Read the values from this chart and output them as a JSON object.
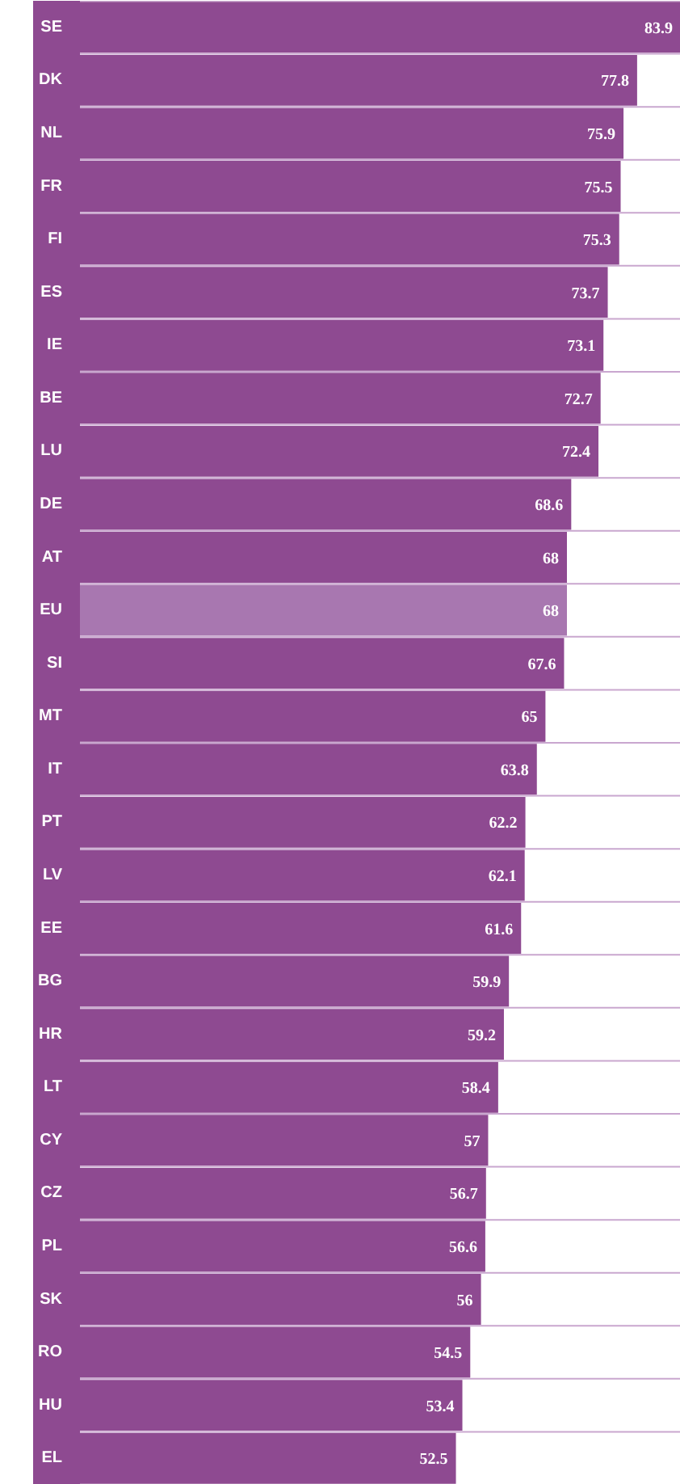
{
  "chart_data": {
    "type": "bar",
    "orientation": "horizontal",
    "data_labels": true,
    "categories": [
      "SE",
      "DK",
      "NL",
      "FR",
      "FI",
      "ES",
      "IE",
      "BE",
      "LU",
      "DE",
      "AT",
      "EU",
      "SI",
      "MT",
      "IT",
      "PT",
      "LV",
      "EE",
      "BG",
      "HR",
      "LT",
      "CY",
      "CZ",
      "PL",
      "SK",
      "RO",
      "HU",
      "EL"
    ],
    "values": [
      83.9,
      77.8,
      75.9,
      75.5,
      75.3,
      73.7,
      73.1,
      72.7,
      72.4,
      68.6,
      68,
      68,
      67.6,
      65,
      63.8,
      62.2,
      62.1,
      61.6,
      59.9,
      59.2,
      58.4,
      57,
      56.7,
      56.6,
      56,
      54.5,
      53.4,
      52.5
    ],
    "colors": [
      "#8e4a91",
      "#8e4a91",
      "#8e4a91",
      "#8e4a91",
      "#8e4a91",
      "#8e4a91",
      "#8e4a91",
      "#8e4a91",
      "#8e4a91",
      "#8e4a91",
      "#8e4a91",
      "#a877b0",
      "#8e4a91",
      "#8e4a91",
      "#8e4a91",
      "#8e4a91",
      "#8e4a91",
      "#8e4a91",
      "#8e4a91",
      "#8e4a91",
      "#8e4a91",
      "#8e4a91",
      "#8e4a91",
      "#8e4a91",
      "#8e4a91",
      "#8e4a91",
      "#8e4a91",
      "#8e4a91"
    ]
  }
}
